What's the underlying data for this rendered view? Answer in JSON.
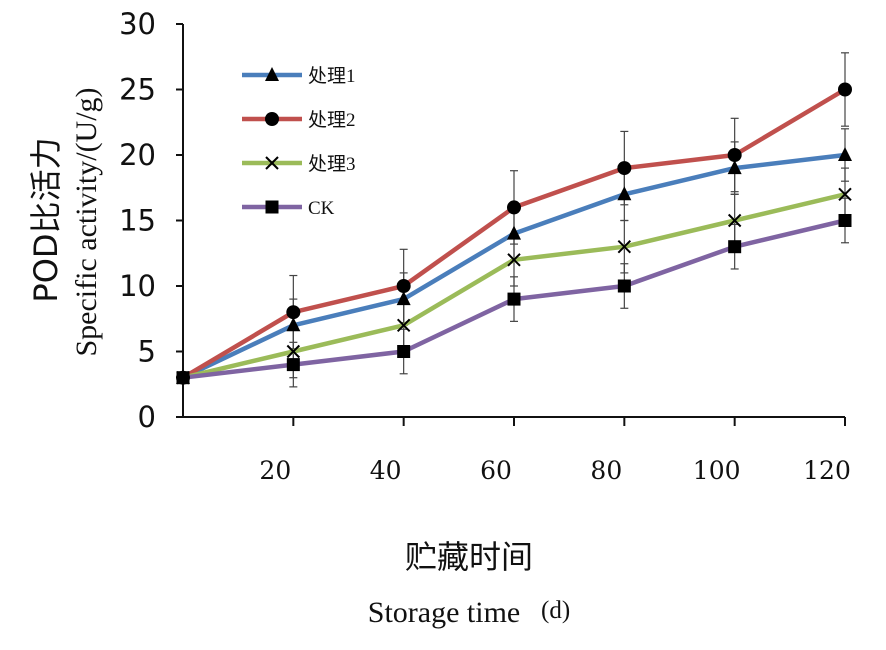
{
  "chart_data": {
    "type": "line",
    "x": [
      0,
      20,
      40,
      60,
      80,
      100,
      120
    ],
    "xticks": [
      "20",
      "40",
      "60",
      "80",
      "100",
      "120"
    ],
    "xlim": [
      0,
      120
    ],
    "ylim": [
      0,
      30
    ],
    "yticks": [
      "0",
      "5",
      "10",
      "15",
      "20",
      "25",
      "30"
    ],
    "xlabel_cn": "贮藏时间",
    "xlabel_en": "Storage time",
    "xlabel_unit": "(d)",
    "ylabel_cn": "POD比活力",
    "ylabel_en": "Specific activity/(U/g)",
    "legend_position": "top-left",
    "grid": false,
    "series": [
      {
        "name": "处理1",
        "color": "#4a7ebb",
        "marker": "triangle",
        "values": [
          3,
          7,
          9,
          14,
          17,
          19,
          20
        ],
        "errors": [
          0,
          2,
          2,
          2,
          2,
          2,
          2
        ]
      },
      {
        "name": "处理2",
        "color": "#c0504d",
        "marker": "circle",
        "values": [
          3,
          8,
          10,
          16,
          19,
          20,
          25
        ],
        "errors": [
          0,
          2.8,
          2.8,
          2.8,
          2.8,
          2.8,
          2.8
        ]
      },
      {
        "name": "处理3",
        "color": "#9bbb59",
        "marker": "x",
        "values": [
          3,
          5,
          7,
          12,
          13,
          15,
          17
        ],
        "errors": [
          0,
          2,
          2,
          2,
          2,
          2,
          2
        ]
      },
      {
        "name": "CK",
        "color": "#7f64a2",
        "marker": "square",
        "values": [
          3,
          4,
          5,
          9,
          10,
          13,
          15
        ],
        "errors": [
          0,
          1.7,
          1.7,
          1.7,
          1.7,
          1.7,
          1.7
        ]
      }
    ]
  }
}
